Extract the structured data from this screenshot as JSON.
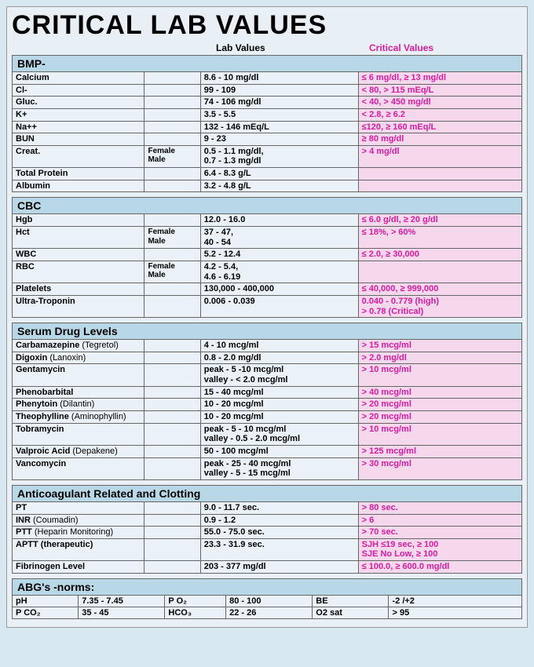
{
  "title": "CRITICAL LAB VALUES",
  "col_lab": "Lab Values",
  "col_crit": "Critical Values",
  "sections": [
    {
      "name": "BMP-",
      "rows": [
        {
          "n": "Calcium",
          "sub": "",
          "lab": "8.6 - 10 mg/dl",
          "crit": "≤ 6 mg/dl, ≥ 13 mg/dl"
        },
        {
          "n": "Cl-",
          "sub": "",
          "lab": "99 - 109",
          "crit": "< 80, > 115 mEq/L"
        },
        {
          "n": "Gluc.",
          "sub": "",
          "lab": "74 - 106 mg/dl",
          "crit": "< 40, > 450 mg/dl"
        },
        {
          "n": "K+",
          "sub": "",
          "lab": "3.5 - 5.5",
          "crit": "< 2.8, ≥ 6.2"
        },
        {
          "n": "Na++",
          "sub": "",
          "lab": "132 - 146 mEq/L",
          "crit": "≤120, ≥ 160 mEq/L"
        },
        {
          "n": "BUN",
          "sub": "",
          "lab": "9 - 23",
          "crit": "≥ 80 mg/dl"
        },
        {
          "n": "Creat.",
          "sub": "Female\nMale",
          "lab": "0.5 - 1.1 mg/dl,\n0.7 - 1.3 mg/dl",
          "crit": "> 4 mg/dl"
        },
        {
          "n": "Total Protein",
          "sub": "",
          "lab": "6.4 - 8.3 g/L",
          "crit": ""
        },
        {
          "n": "Albumin",
          "sub": "",
          "lab": "3.2 - 4.8 g/L",
          "crit": ""
        }
      ]
    },
    {
      "name": "CBC",
      "rows": [
        {
          "n": "Hgb",
          "sub": "",
          "lab": "12.0 - 16.0",
          "crit": "≤ 6.0 g/dl, ≥ 20 g/dl"
        },
        {
          "n": "Hct",
          "sub": "Female\nMale",
          "lab": "37 - 47,\n40 - 54",
          "crit": "≤ 18%, > 60%"
        },
        {
          "n": "WBC",
          "sub": "",
          "lab": "5.2 - 12.4",
          "crit": "≤ 2.0, ≥ 30,000"
        },
        {
          "n": "RBC",
          "sub": "Female\nMale",
          "lab": "4.2 - 5.4,\n4.6 - 6.19",
          "crit": ""
        },
        {
          "n": "Platelets",
          "sub": "",
          "lab": "130,000 - 400,000",
          "crit": "≤ 40,000, ≥ 999,000"
        },
        {
          "n": "Ultra-Troponin",
          "sub": "",
          "lab": "0.006 - 0.039",
          "crit": "0.040 - 0.779 (high)\n> 0.78 (Critical)"
        }
      ]
    },
    {
      "name": "Serum Drug Levels",
      "rows": [
        {
          "n": "Carbamazepine",
          "paren": "(Tegretol)",
          "sub": "",
          "lab": "4 - 10 mcg/ml",
          "crit": "> 15 mcg/ml"
        },
        {
          "n": "Digoxin",
          "paren": "(Lanoxin)",
          "sub": "",
          "lab": "0.8 - 2.0 mg/dl",
          "crit": "> 2.0 mg/dl"
        },
        {
          "n": "Gentamycin",
          "sub": "",
          "lab": "peak - 5 -10 mcg/ml\nvalley - < 2.0 mcg/ml",
          "crit": "> 10 mcg/ml"
        },
        {
          "n": "Phenobarbital",
          "sub": "",
          "lab": "15 - 40 mcg/ml",
          "crit": "> 40 mcg/ml"
        },
        {
          "n": "Phenytoin",
          "paren": "(Dilantin)",
          "sub": "",
          "lab": "10 - 20 mcg/ml",
          "crit": "> 20 mcg/ml"
        },
        {
          "n": "Theophylline",
          "paren": "(Aminophyllin)",
          "sub": "",
          "lab": "10 - 20 mcg/ml",
          "crit": "> 20 mcg/ml"
        },
        {
          "n": "Tobramycin",
          "sub": "",
          "lab": "peak -    5 - 10 mcg/ml\nvalley - 0.5 - 2.0 mcg/ml",
          "crit": "> 10 mcg/ml"
        },
        {
          "n": "Valproic Acid",
          "paren": "(Depakene)",
          "sub": "",
          "lab": "50 - 100 mcg/ml",
          "crit": "> 125 mcg/ml"
        },
        {
          "n": "Vancomycin",
          "sub": "",
          "lab": "peak - 25 - 40 mcg/ml\nvalley -  5 - 15 mcg/ml",
          "crit": "> 30 mcg/ml"
        }
      ]
    },
    {
      "name": "Anticoagulant Related and Clotting",
      "rows": [
        {
          "n": "PT",
          "sub": "",
          "lab": "9.0 - 11.7 sec.",
          "crit": "> 80 sec."
        },
        {
          "n": "INR",
          "paren": "(Coumadin)",
          "sub": "",
          "lab": "0.9 - 1.2",
          "crit": "> 6"
        },
        {
          "n": "PTT",
          "paren": "(Heparin Monitoring)",
          "sub": "",
          "lab": "55.0 - 75.0 sec.",
          "crit": "> 70 sec."
        },
        {
          "n": "APTT (therapeutic)",
          "sub": "",
          "lab": "23.3 - 31.9 sec.",
          "crit": "SJH ≤19 sec, ≥ 100\nSJE No Low, ≥ 100"
        },
        {
          "n": "Fibrinogen Level",
          "sub": "",
          "lab": "203 - 377 mg/dl",
          "crit": "≤ 100.0, ≥ 600.0 mg/dl"
        }
      ]
    }
  ],
  "abg": {
    "name": "ABG's -norms:",
    "rows": [
      {
        "k1": "pH",
        "v1": "7.35 - 7.45",
        "k2": "P O₂",
        "v2": "80 - 100",
        "k3": "BE",
        "v3": "-2 /+2"
      },
      {
        "k1": "P CO₂",
        "v1": "35 - 45",
        "k2": "HCO₃",
        "v2": "22 - 26",
        "k3": "O2 sat",
        "v3": "> 95"
      }
    ]
  }
}
